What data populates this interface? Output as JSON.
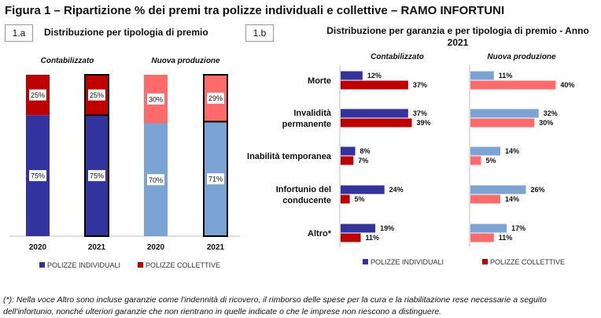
{
  "figure_title": "Figura 1 – Ripartizione % dei premi tra polizze individuali e collettive – RAMO INFORTUNI",
  "panel_a": {
    "id": "1.a",
    "subtitle": "Distribuzione per tipologia di premio"
  },
  "panel_b": {
    "id": "1.b",
    "subtitle_line1": "Distribuzione per garanzia e per tipologia di premio - Anno",
    "subtitle_line2": "2021"
  },
  "legend": {
    "individuali": "POLIZZE INDIVIDUALI",
    "collettive": "POLIZZE COLLETTIVE"
  },
  "colors": {
    "contab_individuali": "#3333a0",
    "contab_collettive": "#c00000",
    "nuova_individuali": "#7ba3d4",
    "nuova_collettive": "#ff6a6a"
  },
  "footnote_line1": "(*): Nella voce Altro sono incluse garanzie come l'indennità di ricovero, il rimborso delle spese per la cura e la riabilitazione rese necessarie a seguito",
  "footnote_line2": "dell'infortunio, nonché ulteriori garanzie che non rientrano in quelle indicate o che le imprese non riescono a distinguere.",
  "chart_data": [
    {
      "type": "bar",
      "stacked": true,
      "orientation": "vertical",
      "title": "Distribuzione per tipologia di premio",
      "groups": [
        "Contabilizzato",
        "Nuova produzione"
      ],
      "categories": [
        "2020",
        "2021",
        "2020",
        "2021"
      ],
      "series": [
        {
          "name": "POLIZZE INDIVIDUALI",
          "values": [
            75,
            75,
            70,
            71
          ],
          "labels": [
            "75%",
            "75%",
            "70%",
            "71%"
          ]
        },
        {
          "name": "POLIZZE COLLETTIVE",
          "values": [
            25,
            25,
            30,
            29
          ],
          "labels": [
            "25%",
            "25%",
            "30%",
            "29%"
          ]
        }
      ],
      "highlighted": [
        false,
        true,
        false,
        true
      ],
      "ylim": [
        0,
        100
      ],
      "legend": "bottom"
    },
    {
      "type": "bar",
      "orientation": "horizontal",
      "title": "Distribuzione per garanzia e per tipologia di premio - Anno 2021",
      "categories": [
        "Morte",
        "Invalidità permanente",
        "Inabilità temporanea",
        "Infortunio del conducente",
        "Altro*"
      ],
      "category_lines": [
        [
          "Morte"
        ],
        [
          "Invalidità",
          "permanente"
        ],
        [
          "Inabilità temporanea"
        ],
        [
          "Infortunio del",
          "conducente"
        ],
        [
          "Altro*"
        ]
      ],
      "panels": [
        {
          "name": "Contabilizzato",
          "series": [
            {
              "name": "POLIZZE INDIVIDUALI",
              "values": [
                12,
                37,
                8,
                24,
                19
              ],
              "labels": [
                "12%",
                "37%",
                "8%",
                "24%",
                "19%"
              ]
            },
            {
              "name": "POLIZZE COLLETTIVE",
              "values": [
                37,
                39,
                7,
                5,
                11
              ],
              "labels": [
                "37%",
                "39%",
                "7%",
                "5%",
                "11%"
              ]
            }
          ]
        },
        {
          "name": "Nuova produzione",
          "series": [
            {
              "name": "POLIZZE INDIVIDUALI",
              "values": [
                11,
                32,
                14,
                26,
                17
              ],
              "labels": [
                "11%",
                "32%",
                "14%",
                "26%",
                "17%"
              ]
            },
            {
              "name": "POLIZZE COLLETTIVE",
              "values": [
                40,
                30,
                5,
                14,
                11
              ],
              "labels": [
                "40%",
                "30%",
                "5%",
                "14%",
                "11%"
              ]
            }
          ]
        }
      ],
      "legend": "bottom"
    }
  ]
}
